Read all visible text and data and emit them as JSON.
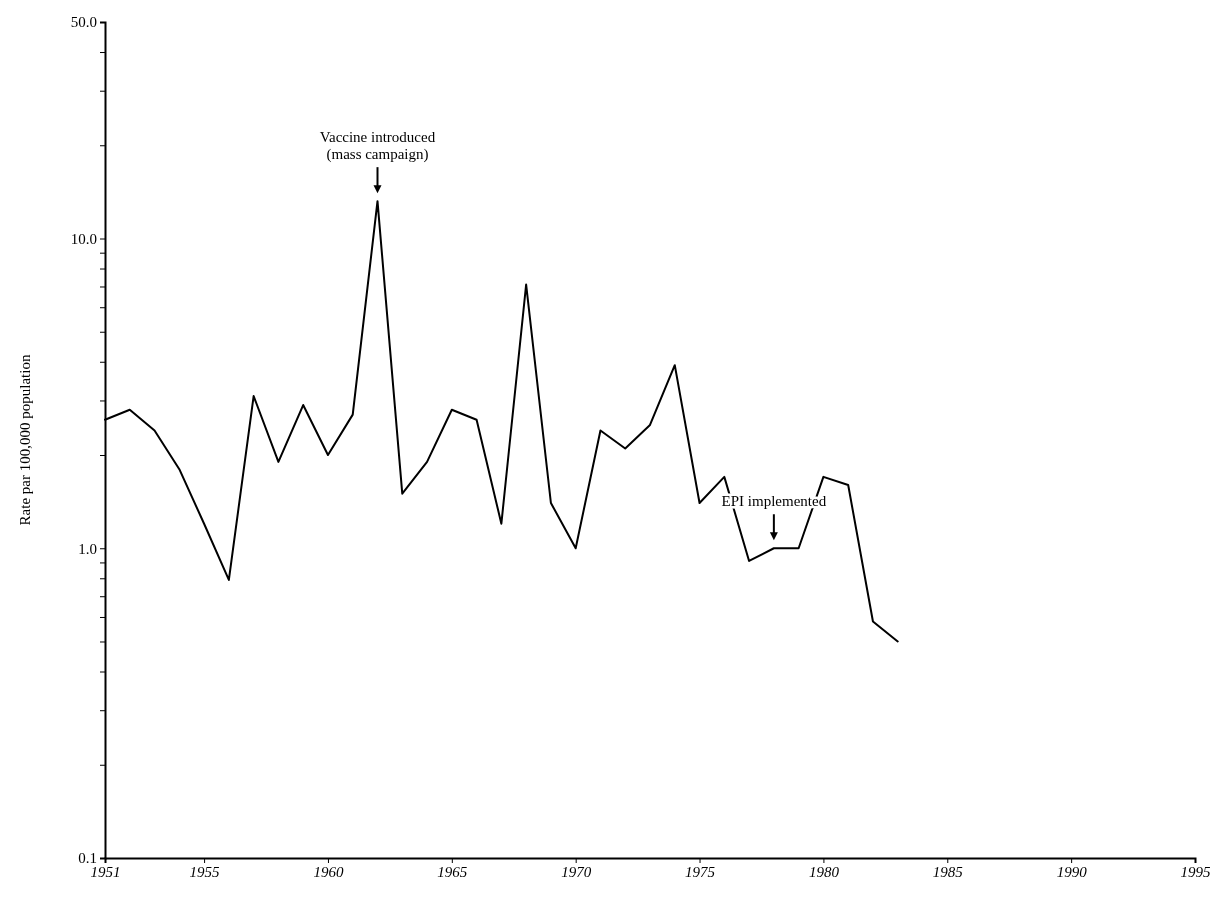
{
  "chart_data": {
    "type": "line",
    "ylabel": "Rate par 100,000 population",
    "log": true,
    "x": [
      1951,
      1952,
      1953,
      1954,
      1955,
      1956,
      1957,
      1958,
      1959,
      1960,
      1961,
      1962,
      1963,
      1964,
      1965,
      1966,
      1967,
      1968,
      1969,
      1970,
      1971,
      1972,
      1973,
      1974,
      1975,
      1976,
      1977,
      1978,
      1979,
      1980,
      1981,
      1982,
      1983
    ],
    "series": [
      {
        "color": "#000000",
        "values": [
          2.6,
          2.8,
          2.4,
          1.8,
          1.2,
          0.79,
          3.1,
          1.9,
          2.9,
          2.0,
          2.7,
          13.2,
          1.5,
          1.9,
          2.8,
          2.6,
          1.2,
          7.1,
          1.4,
          1.0,
          2.4,
          2.1,
          2.5,
          3.9,
          1.4,
          1.7,
          0.91,
          1.0,
          1.0,
          1.7,
          1.6,
          0.58,
          0.5
        ]
      }
    ],
    "xlim": [
      1951,
      1995
    ],
    "xticks": [
      1951,
      1955,
      1960,
      1965,
      1970,
      1975,
      1980,
      1985,
      1990,
      1995
    ],
    "ylim": [
      0.1,
      50
    ],
    "yticks": [
      {
        "value": 0.1,
        "label": "0.1"
      },
      {
        "value": 0.2,
        "label": null
      },
      {
        "value": 0.3,
        "label": null
      },
      {
        "value": 0.4,
        "label": null
      },
      {
        "value": 0.5,
        "label": null
      },
      {
        "value": 0.6,
        "label": null
      },
      {
        "value": 0.7,
        "label": null
      },
      {
        "value": 0.8,
        "label": null
      },
      {
        "value": 0.9,
        "label": null
      },
      {
        "value": 1,
        "label": "1.0"
      },
      {
        "value": 2,
        "label": null
      },
      {
        "value": 3,
        "label": null
      },
      {
        "value": 4,
        "label": null
      },
      {
        "value": 5,
        "label": null
      },
      {
        "value": 6,
        "label": null
      },
      {
        "value": 7,
        "label": null
      },
      {
        "value": 8,
        "label": null
      },
      {
        "value": 9,
        "label": null
      },
      {
        "value": 10,
        "label": "10.0"
      },
      {
        "value": 20,
        "label": null
      },
      {
        "value": 30,
        "label": null
      },
      {
        "value": 40,
        "label": null
      },
      {
        "value": 50,
        "label": "50.0"
      }
    ],
    "grid": false,
    "marker": "none",
    "line_style": "solid",
    "annotations": [
      {
        "text": "Vaccine introduced (mass campaign)",
        "x": 1962,
        "y": 13.2
      },
      {
        "text": "EPI implemented",
        "x": 1978,
        "y": 1.0
      }
    ]
  }
}
